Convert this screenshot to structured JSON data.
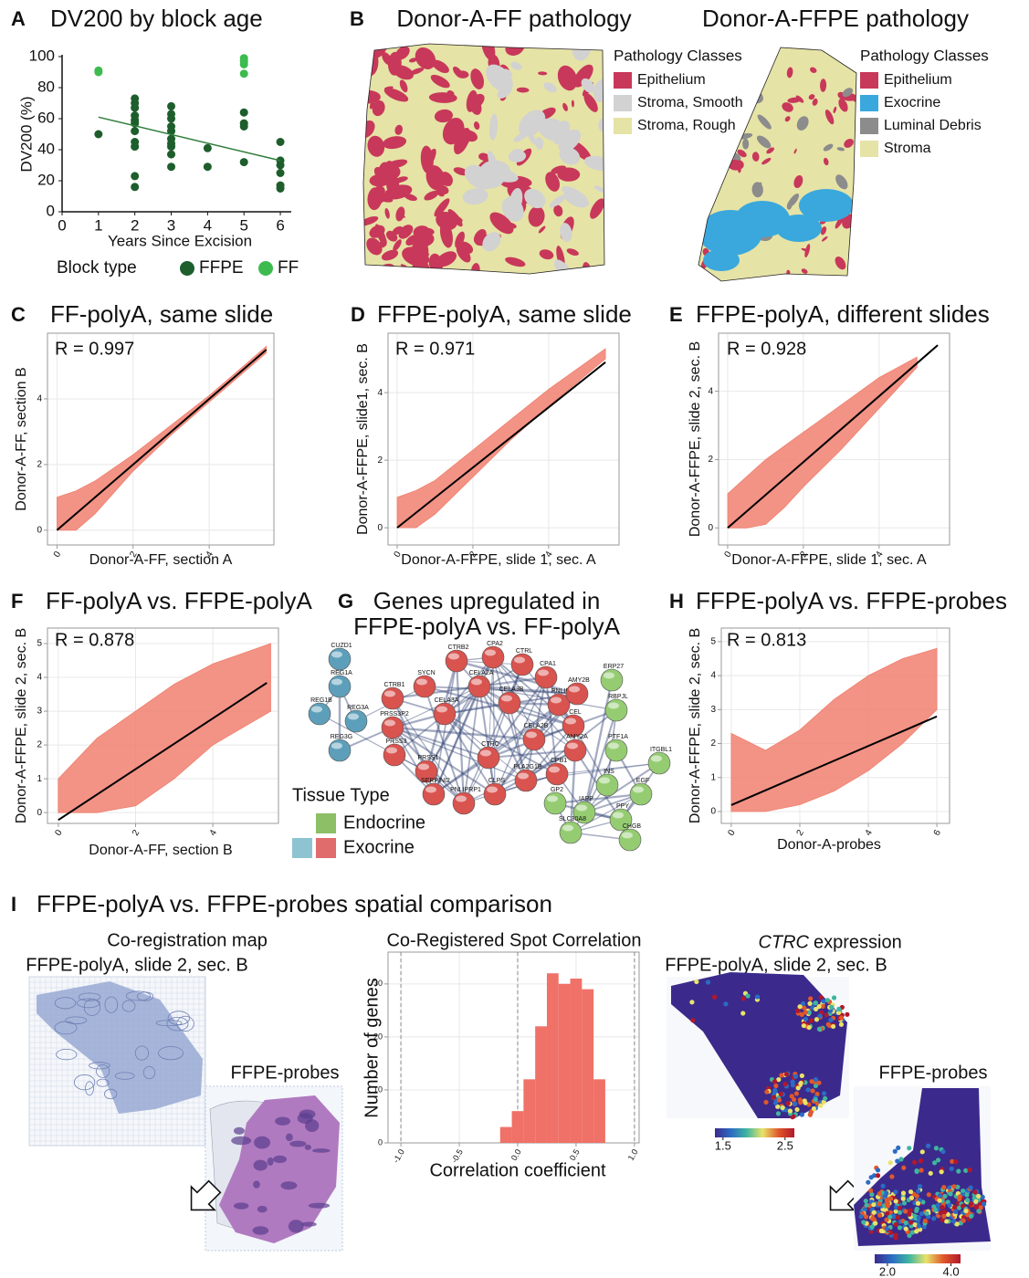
{
  "chart_data": [
    {
      "panel": "A",
      "type": "scatter",
      "title": "DV200 by block age",
      "x_label": "Years Since Excision",
      "y_label": "DV200 (%)",
      "xlim": [
        0,
        6.3
      ],
      "ylim": [
        0,
        100
      ],
      "xticks": [
        0,
        1,
        2,
        3,
        4,
        5,
        6
      ],
      "yticks": [
        0,
        20,
        40,
        60,
        80,
        100
      ],
      "grid": false,
      "legend_title": "Block type",
      "series": [
        {
          "name": "FFPE",
          "color": "#1d5e2c",
          "x": [
            1,
            2,
            2,
            2,
            2,
            2,
            2,
            2,
            2,
            2,
            2,
            2,
            3,
            3,
            3,
            3,
            3,
            3,
            3,
            3,
            3,
            3,
            4,
            4,
            5,
            5,
            5,
            5,
            6,
            6,
            6,
            6,
            6,
            6
          ],
          "values": [
            50,
            73,
            70,
            67,
            62,
            59,
            57,
            52,
            45,
            42,
            23,
            16,
            68,
            63,
            60,
            55,
            52,
            47,
            44,
            42,
            37,
            29,
            41,
            29,
            64,
            57,
            55,
            32,
            45,
            33,
            30,
            25,
            17,
            15
          ]
        },
        {
          "name": "FF",
          "color": "#3dbb4f",
          "x": [
            1,
            1,
            5,
            5,
            5,
            5
          ],
          "values": [
            91,
            90,
            99,
            97,
            95,
            89
          ]
        }
      ],
      "trend": {
        "color": "#2f7d3a",
        "x": [
          1,
          6
        ],
        "values": [
          61,
          33
        ]
      }
    },
    {
      "panel": "C",
      "type": "scatter-density",
      "title": "FF-polyA, same slide",
      "x_label": "Donor-A-FF, section A",
      "y_label": "Donor-A-FF, section B",
      "annotation": "R = 0.997",
      "xlim": [
        -0.25,
        5.7
      ],
      "ylim": [
        -0.45,
        6.0
      ],
      "xticks": [
        0,
        2,
        4
      ],
      "yticks": [
        0,
        2,
        4
      ],
      "grid": true,
      "cloud": {
        "color": "#f08070",
        "x": [
          0,
          0.5,
          1,
          2,
          3,
          4,
          5.5
        ],
        "lower": [
          0,
          0,
          0.5,
          1.8,
          2.9,
          3.9,
          5.4
        ],
        "upper": [
          1,
          1.2,
          1.5,
          2.3,
          3.2,
          4.1,
          5.6
        ]
      },
      "fit": {
        "color": "#000000",
        "x": [
          0,
          5.5
        ],
        "values": [
          0,
          5.5
        ]
      }
    },
    {
      "panel": "D",
      "type": "scatter-density",
      "title": "FFPE-polyA, same slide",
      "x_label": "Donor-A-FFPE, slide 1, sec. A",
      "y_label": "Donor-A-FFPE, slide1, sec. B",
      "annotation": "R = 0.971",
      "xlim": [
        -0.24,
        5.86
      ],
      "ylim": [
        -0.51,
        5.76
      ],
      "xticks": [
        0,
        2,
        4
      ],
      "yticks": [
        0,
        2,
        4
      ],
      "grid": true,
      "cloud": {
        "color": "#f08070",
        "x": [
          0,
          0.5,
          1,
          2,
          3,
          4,
          5.5
        ],
        "lower": [
          0,
          0,
          0.4,
          1.5,
          2.6,
          3.6,
          5.0
        ],
        "upper": [
          0.9,
          1.1,
          1.4,
          2.3,
          3.2,
          4.1,
          5.3
        ]
      },
      "fit": {
        "color": "#000000",
        "x": [
          0,
          5.5
        ],
        "values": [
          0,
          4.9
        ]
      }
    },
    {
      "panel": "E",
      "type": "scatter-density",
      "title": "FFPE-polyA, different slides",
      "x_label": "Donor-A-FFPE, slide 1, sec. A",
      "y_label": "Donor-A-FFPE, slide 2, sec. B",
      "annotation": "R = 0.928",
      "xlim": [
        -0.24,
        5.86
      ],
      "ylim": [
        -0.5,
        5.7
      ],
      "xticks": [
        0,
        2,
        4
      ],
      "yticks": [
        0,
        2,
        4
      ],
      "grid": true,
      "cloud": {
        "color": "#f08070",
        "x": [
          0,
          0.5,
          1,
          1.5,
          2,
          3,
          4,
          5
        ],
        "lower": [
          0,
          0,
          0.1,
          0.6,
          1.2,
          2.3,
          3.5,
          4.7
        ],
        "upper": [
          1.0,
          1.5,
          2.0,
          2.4,
          2.8,
          3.6,
          4.4,
          5.0
        ]
      },
      "fit": {
        "color": "#000000",
        "x": [
          0,
          5.55
        ],
        "values": [
          0,
          5.35
        ]
      }
    },
    {
      "panel": "F",
      "type": "scatter-density",
      "title": "FF-polyA vs. FFPE-polyA",
      "x_label": "Donor-A-FF, section B",
      "y_label": "Donor-A-FFPE, slide 2, sec. B",
      "annotation": "R = 0.878",
      "xlim": [
        -0.28,
        5.7
      ],
      "ylim": [
        -0.32,
        5.46
      ],
      "xticks": [
        0,
        2,
        4
      ],
      "yticks": [
        0,
        1,
        2,
        3,
        4,
        5
      ],
      "grid": true,
      "cloud": {
        "color": "#f08070",
        "x": [
          0,
          0.5,
          1,
          2,
          3,
          4,
          5.5
        ],
        "lower": [
          0,
          0,
          0,
          0.2,
          1.0,
          2.0,
          3.0
        ],
        "upper": [
          1.0,
          1.6,
          2.2,
          3.0,
          3.8,
          4.4,
          5.0
        ]
      },
      "fit": {
        "color": "#000000",
        "x": [
          0,
          5.4
        ],
        "values": [
          -0.22,
          3.84
        ]
      }
    },
    {
      "panel": "H",
      "type": "scatter-density",
      "title": "FFPE-polyA vs. FFPE-probes",
      "x_label": "Donor-A-probes",
      "y_label": "Donor-A-FFPE, slide 2, sec. B",
      "annotation": "R = 0.813",
      "xlim": [
        -0.29,
        6.37
      ],
      "ylim": [
        -0.35,
        5.4
      ],
      "xticks": [
        0,
        2,
        4,
        6
      ],
      "yticks": [
        0,
        1,
        2,
        3,
        4,
        5
      ],
      "grid": true,
      "cloud": {
        "color": "#f08070",
        "x": [
          0,
          1,
          2,
          3,
          4,
          5,
          6
        ],
        "lower": [
          0,
          0,
          0.2,
          0.6,
          1.2,
          2.0,
          3.0
        ],
        "upper": [
          2.3,
          1.8,
          2.4,
          3.3,
          4.0,
          4.5,
          4.8
        ]
      },
      "fit": {
        "color": "#000000",
        "x": [
          0,
          6
        ],
        "values": [
          0.19,
          2.8
        ]
      }
    },
    {
      "type": "histogram",
      "title": "Co-Registered Spot Correlation",
      "x_label": "Correlation coefficient",
      "y_label": "Number of genes",
      "color": "#f07167",
      "xlim": [
        -1.11,
        1.04
      ],
      "ylim": [
        0,
        36
      ],
      "xticks": [
        {
          "value": -1,
          "label": "-1.0"
        },
        {
          "value": -0.5,
          "label": "-0.5"
        },
        {
          "value": 0,
          "label": "0.0"
        },
        {
          "value": 0.5,
          "label": "0.5"
        },
        {
          "value": 1,
          "label": "1.0"
        }
      ],
      "yticks": [
        0,
        10,
        20,
        30
      ],
      "grid": true,
      "reference_lines": [
        -1,
        0,
        1
      ],
      "bins": [
        -0.15,
        -0.05,
        0.05,
        0.15,
        0.25,
        0.35,
        0.45,
        0.55,
        0.65,
        0.75
      ],
      "values": [
        3,
        6,
        12,
        22,
        32,
        30,
        31,
        29,
        12
      ]
    }
  ],
  "panel_b": {
    "panel": "B",
    "maps": [
      {
        "title": "Donor-A-FF pathology",
        "legend_title": "Pathology Classes",
        "classes": [
          {
            "name": "Epithelium",
            "color": "#c8385a"
          },
          {
            "name": "Stroma, Smooth",
            "color": "#d2d2d2"
          },
          {
            "name": "Stroma, Rough",
            "color": "#e6e3a6"
          }
        ]
      },
      {
        "title": "Donor-A-FFPE pathology",
        "legend_title": "Pathology Classes",
        "classes": [
          {
            "name": "Epithelium",
            "color": "#c8385a"
          },
          {
            "name": "Exocrine",
            "color": "#3aa8dd"
          },
          {
            "name": "Luminal Debris",
            "color": "#8c8c8c"
          },
          {
            "name": "Stroma",
            "color": "#e6e3a6"
          }
        ]
      }
    ]
  },
  "panel_g": {
    "panel": "G",
    "title_lines": [
      "Genes upregulated in",
      "FFPE-polyA vs. FF-polyA"
    ],
    "legend_title": "Tissue Type",
    "legend": [
      {
        "name": "Endocrine",
        "colors": [
          "#8cbf66"
        ]
      },
      {
        "name": "Exocrine",
        "colors": [
          "#8ec4d2",
          "#e06c6c"
        ]
      }
    ],
    "clusters": [
      {
        "color": "#5d9fba",
        "genes": [
          "CUZD1",
          "REG1A",
          "REG1B",
          "REG3A",
          "REG3G"
        ]
      },
      {
        "color": "#d9534f",
        "genes": [
          "SYCN",
          "CTRB2",
          "CPA2",
          "CTRL",
          "CPA1",
          "PNLIP",
          "CTRB1",
          "CELA2A",
          "PRSS3P2",
          "CELA3A",
          "CELA3B",
          "AMY2B",
          "CEL",
          "PRSS3",
          "CELA2B",
          "AMY2A",
          "PRSS1",
          "CTRC",
          "CPB1",
          "SERPINI2",
          "PNLIPRP1",
          "CLPS",
          "PLA2G1B"
        ]
      },
      {
        "color": "#95cc72",
        "genes": [
          "ERP27",
          "RBPJL",
          "PTF1A",
          "ITGBL1",
          "INS",
          "EGF",
          "GP2",
          "IAPP",
          "PPY",
          "SLC30A8",
          "CHGB"
        ]
      }
    ]
  },
  "panel_i": {
    "panel": "I",
    "title": "FFPE-polyA vs. FFPE-probes spatial comparison",
    "coregistration": {
      "title": "Co-registration map",
      "source": "FFPE-polyA, slide 2, sec. B",
      "target": "FFPE-probes"
    },
    "expression": {
      "gene": "CTRC",
      "title": "expression",
      "source": "FFPE-polyA, slide 2, sec. B",
      "target": "FFPE-probes",
      "colormap": [
        "#3b2a8c",
        "#2b6cc4",
        "#3fb5a0",
        "#e9e36a",
        "#e0582b",
        "#b2182b"
      ],
      "colorbars": [
        {
          "lim": [
            1.37,
            2.65
          ],
          "ticks": [
            1.5,
            2.5
          ]
        },
        {
          "lim": [
            1.6,
            4.3
          ],
          "ticks": [
            {
              "value": 2,
              "label": "2.0"
            },
            {
              "value": 4,
              "label": "4.0"
            }
          ]
        }
      ]
    }
  }
}
